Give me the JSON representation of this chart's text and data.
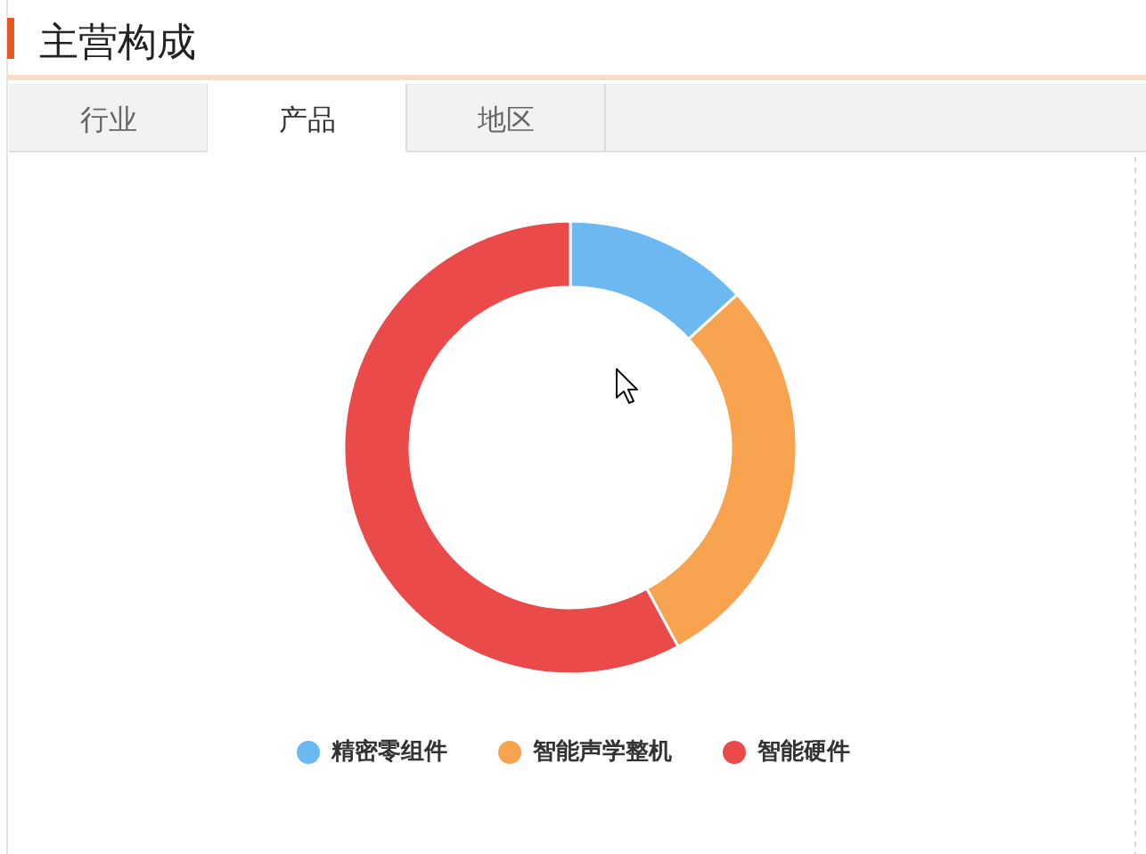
{
  "chart_data": {
    "type": "donut",
    "title": "主营构成",
    "annotations": [
      "行业",
      "产品",
      "地区"
    ],
    "categories": [
      "精密零组件",
      "智能声学整机",
      "智能硬件"
    ],
    "values": [
      13.2,
      28.9,
      57.9
    ],
    "colors": [
      "#6cb8f0",
      "#f7a350",
      "#eb4a4a"
    ],
    "legend": "bottom"
  }
}
